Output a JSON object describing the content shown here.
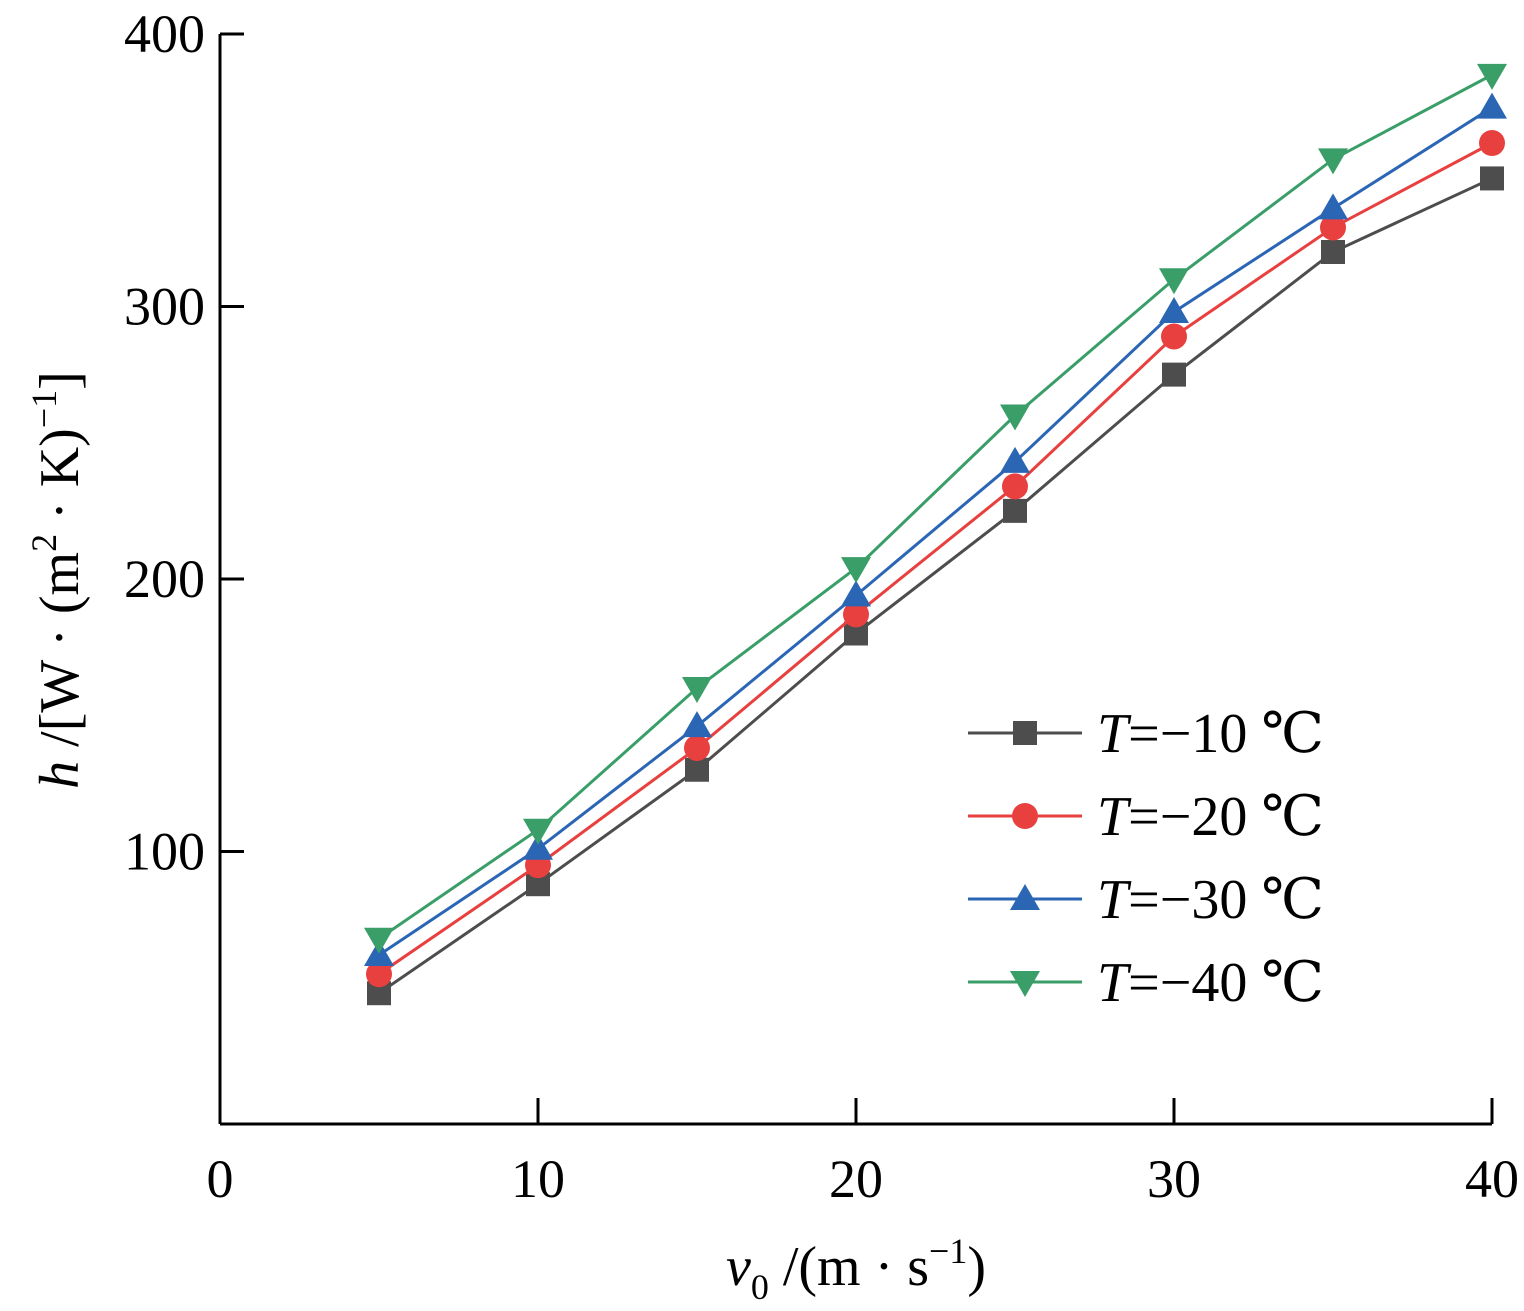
{
  "chart_data": {
    "type": "line",
    "title": "",
    "xlabel": "v₀ /(m · s⁻¹)",
    "ylabel": "h /[W · (m² · K)⁻¹]",
    "xlim": [
      0,
      40
    ],
    "ylim": [
      0,
      400
    ],
    "x_ticks": [
      "0",
      "10",
      "20",
      "30",
      "40"
    ],
    "y_ticks": [
      "100",
      "200",
      "300",
      "400"
    ],
    "x": [
      5,
      10,
      15,
      20,
      25,
      30,
      35,
      40
    ],
    "legend_position": "center-right",
    "grid": false,
    "series": [
      {
        "name": "T=−10 ℃",
        "label_var": "T",
        "label_rest": "=−10 ℃",
        "color": "#4d4d4d",
        "marker": "square",
        "values": [
          48,
          88,
          130,
          180,
          225,
          275,
          320,
          347
        ]
      },
      {
        "name": "T=−20 ℃",
        "label_var": "T",
        "label_rest": "=−20 ℃",
        "color": "#e8403f",
        "marker": "circle",
        "values": [
          55,
          95,
          138,
          187,
          234,
          289,
          329,
          360
        ]
      },
      {
        "name": "T=−30 ℃",
        "label_var": "T",
        "label_rest": "=−30 ℃",
        "color": "#2b66b5",
        "marker": "triangle-up",
        "values": [
          62,
          101,
          146,
          194,
          243,
          298,
          336,
          373
        ]
      },
      {
        "name": "T=−40 ℃",
        "label_var": "T",
        "label_rest": "=−40 ℃",
        "color": "#3a9e68",
        "marker": "triangle-down",
        "values": [
          68,
          108,
          160,
          204,
          260,
          310,
          354,
          385
        ]
      }
    ]
  }
}
